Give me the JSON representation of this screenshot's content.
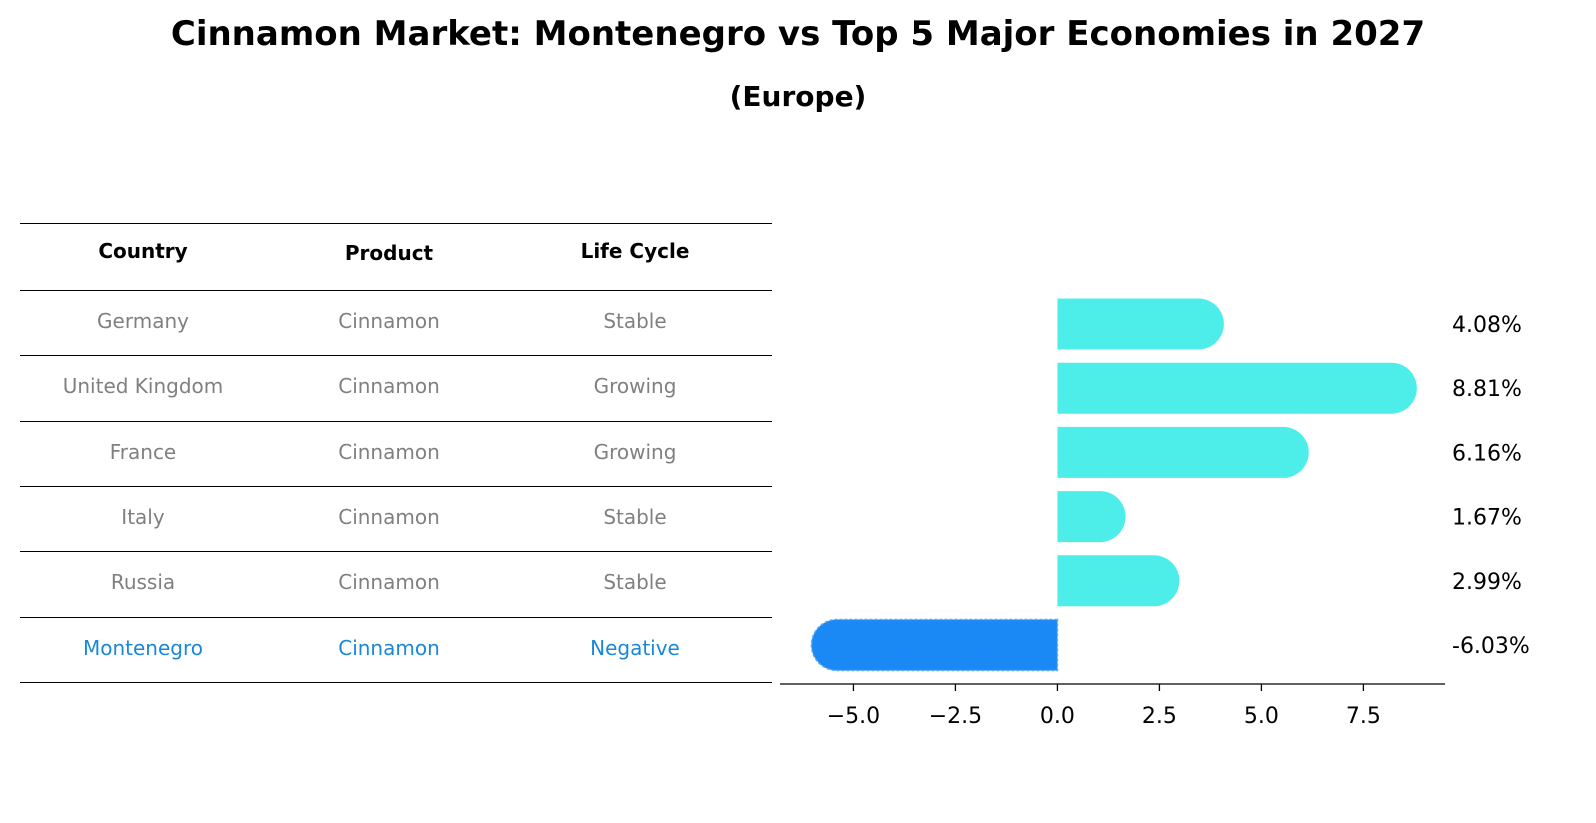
{
  "title": "Cinnamon Market: Montenegro vs Top 5 Major Economies in 2027",
  "subtitle": "(Europe)",
  "table": {
    "headers": [
      "Country",
      "Product",
      "Life Cycle"
    ],
    "rows": [
      {
        "country": "Germany",
        "product": "Cinnamon",
        "life_cycle": "Stable"
      },
      {
        "country": "United Kingdom",
        "product": "Cinnamon",
        "life_cycle": "Growing"
      },
      {
        "country": "France",
        "product": "Cinnamon",
        "life_cycle": "Growing"
      },
      {
        "country": "Italy",
        "product": "Cinnamon",
        "life_cycle": "Stable"
      },
      {
        "country": "Russia",
        "product": "Cinnamon",
        "life_cycle": "Stable"
      },
      {
        "country": "Montenegro",
        "product": "Cinnamon",
        "life_cycle": "Negative"
      }
    ],
    "highlight_row": 5
  },
  "chart_data": {
    "type": "bar",
    "orientation": "horizontal",
    "categories": [
      "Germany",
      "United Kingdom",
      "France",
      "Italy",
      "Russia",
      "Montenegro"
    ],
    "values": [
      4.08,
      8.81,
      6.16,
      1.67,
      2.99,
      -6.03
    ],
    "value_labels": [
      "4.08%",
      "8.81%",
      "6.16%",
      "1.67%",
      "2.99%",
      "-6.03%"
    ],
    "xlim": [
      -6.8,
      9.5
    ],
    "xticks": [
      -5.0,
      -2.5,
      0.0,
      2.5,
      5.0,
      7.5
    ],
    "xtick_labels": [
      "−5.0",
      "−2.5",
      "0.0",
      "2.5",
      "5.0",
      "7.5"
    ],
    "grid": false,
    "colors": {
      "positive": "#4deeea",
      "negative": "#1a88f5"
    }
  }
}
